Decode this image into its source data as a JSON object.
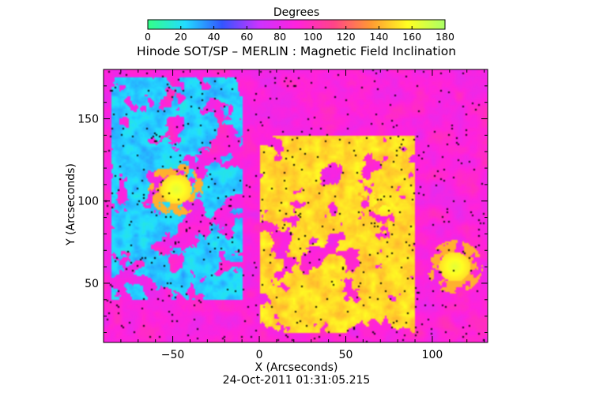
{
  "chart_data": {
    "type": "heatmap",
    "title": "Hinode SOT/SP – MERLIN : Magnetic Field Inclination",
    "xlabel": "X (Arcseconds)",
    "ylabel": "Y (Arcseconds)",
    "xlim": [
      -90,
      132
    ],
    "ylim": [
      14,
      180
    ],
    "x_ticks": [
      -50,
      0,
      50,
      100
    ],
    "y_ticks": [
      50,
      100,
      150
    ],
    "colorbar": {
      "label": "Degrees",
      "range": [
        0,
        180
      ],
      "ticks": [
        0,
        20,
        40,
        60,
        80,
        100,
        120,
        140,
        160,
        180
      ],
      "colors": [
        "#33ff88",
        "#22ddff",
        "#3355ff",
        "#cc33ff",
        "#ff22dd",
        "#ff4488",
        "#ff9933",
        "#ffff22",
        "#aaff66"
      ]
    },
    "features": [
      {
        "kind": "low-inclination band",
        "x_range": [
          -85,
          -10
        ],
        "y_range": [
          40,
          175
        ],
        "value_deg": 25
      },
      {
        "kind": "vertical field center",
        "x": -48,
        "y": 107,
        "value_deg": 150
      },
      {
        "kind": "vertical field center",
        "x": 72,
        "y": 100,
        "value_deg": 150
      },
      {
        "kind": "vertical field center",
        "x": 113,
        "y": 60,
        "value_deg": 150
      },
      {
        "kind": "positive network region",
        "x_range": [
          0,
          90
        ],
        "y_range": [
          20,
          140
        ],
        "value_deg": 150
      },
      {
        "kind": "background",
        "value_deg": 90
      }
    ],
    "timestamp": "24-Oct-2011 01:31:05.215"
  }
}
